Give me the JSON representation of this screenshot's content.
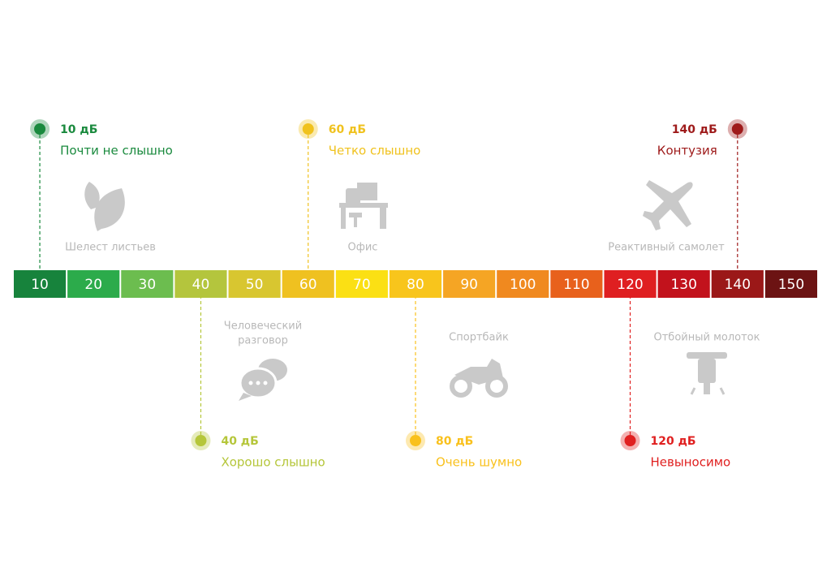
{
  "scale": {
    "labels": [
      10,
      20,
      30,
      40,
      50,
      60,
      70,
      80,
      90,
      100,
      110,
      120,
      130,
      140,
      150
    ],
    "colors": [
      "#17833c",
      "#2cab4b",
      "#6cbd4f",
      "#b4c53d",
      "#d8c630",
      "#efc120",
      "#fbe014",
      "#f8c51c",
      "#f5a524",
      "#f0891f",
      "#e8611c",
      "#df1f21",
      "#c2121c",
      "#9b1818",
      "#6c1313"
    ]
  },
  "markers": [
    {
      "level": "10 дБ",
      "label": "Почти не слышно",
      "color": "#1a8a3e"
    },
    {
      "level": "60 дБ",
      "label": "Четко слышно",
      "color": "#f0c21e"
    },
    {
      "level": "140 дБ",
      "label": "Контузия",
      "color": "#9e1a1a"
    },
    {
      "level": "40 дБ",
      "label": "Хорошо слышно",
      "color": "#b5c63a"
    },
    {
      "level": "80 дБ",
      "label": "Очень шумно",
      "color": "#f9c11d"
    },
    {
      "level": "120 дБ",
      "label": "Невыносимо",
      "color": "#e02020"
    }
  ],
  "sources": [
    {
      "lines": [
        "Шелест листьев"
      ]
    },
    {
      "lines": [
        "Офис"
      ]
    },
    {
      "lines": [
        "Реактивный самолет"
      ]
    },
    {
      "lines": [
        "Человеческий",
        "разговор"
      ]
    },
    {
      "lines": [
        "Спортбайк"
      ]
    },
    {
      "lines": [
        "Отбойный молоток"
      ]
    }
  ]
}
